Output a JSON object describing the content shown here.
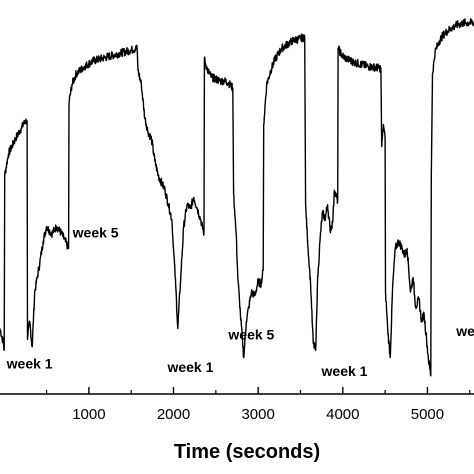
{
  "chart_data": {
    "type": "line",
    "title": "",
    "xlabel": "Time (seconds)",
    "ylabel": "",
    "xlim": [
      -50,
      5550
    ],
    "ylim": [
      0,
      100
    ],
    "xticks": [
      1000,
      2000,
      3000,
      4000,
      5000
    ],
    "grid": false,
    "legend": "none",
    "line_color": "#000000",
    "annotations": [
      {
        "text": "week 1",
        "x": 300,
        "y": 7
      },
      {
        "text": "week 5",
        "x": 1080,
        "y": 43
      },
      {
        "text": "week 1",
        "x": 2200,
        "y": 6
      },
      {
        "text": "week 5",
        "x": 2920,
        "y": 15
      },
      {
        "text": "week 1",
        "x": 4020,
        "y": 5
      },
      {
        "text": "we",
        "x": 5450,
        "y": 16
      }
    ],
    "series": [
      {
        "values": [
          [
            -50,
            18
          ],
          [
            -10,
            14
          ],
          [
            0,
            12
          ],
          [
            5,
            60
          ],
          [
            50,
            66
          ],
          [
            130,
            70
          ],
          [
            200,
            73
          ],
          [
            250,
            75
          ],
          [
            270,
            75
          ],
          [
            275,
            15
          ],
          [
            300,
            20
          ],
          [
            330,
            13
          ],
          [
            360,
            28
          ],
          [
            390,
            32
          ],
          [
            420,
            36
          ],
          [
            460,
            42
          ],
          [
            500,
            46
          ],
          [
            560,
            44
          ],
          [
            620,
            46
          ],
          [
            680,
            44
          ],
          [
            760,
            40
          ],
          [
            765,
            80
          ],
          [
            800,
            85
          ],
          [
            850,
            88
          ],
          [
            950,
            90
          ],
          [
            1050,
            91.5
          ],
          [
            1200,
            92.5
          ],
          [
            1350,
            93.5
          ],
          [
            1500,
            94.5
          ],
          [
            1570,
            95
          ],
          [
            1580,
            89
          ],
          [
            1620,
            85
          ],
          [
            1660,
            76
          ],
          [
            1700,
            72
          ],
          [
            1740,
            70
          ],
          [
            1780,
            64
          ],
          [
            1820,
            60
          ],
          [
            1860,
            58
          ],
          [
            1900,
            56
          ],
          [
            1940,
            52
          ],
          [
            1980,
            48
          ],
          [
            2000,
            40
          ],
          [
            2030,
            28
          ],
          [
            2050,
            18
          ],
          [
            2080,
            30
          ],
          [
            2120,
            46
          ],
          [
            2160,
            52
          ],
          [
            2200,
            51
          ],
          [
            2240,
            54
          ],
          [
            2280,
            51
          ],
          [
            2320,
            48
          ],
          [
            2360,
            44
          ],
          [
            2365,
            92
          ],
          [
            2400,
            89
          ],
          [
            2450,
            87
          ],
          [
            2500,
            86.5
          ],
          [
            2550,
            86
          ],
          [
            2600,
            86
          ],
          [
            2650,
            85.5
          ],
          [
            2700,
            84
          ],
          [
            2710,
            55
          ],
          [
            2740,
            44
          ],
          [
            2760,
            32
          ],
          [
            2790,
            22
          ],
          [
            2830,
            10
          ],
          [
            2860,
            20
          ],
          [
            2890,
            24
          ],
          [
            2920,
            28
          ],
          [
            2960,
            27
          ],
          [
            3000,
            31
          ],
          [
            3030,
            30
          ],
          [
            3060,
            34
          ],
          [
            3065,
            74
          ],
          [
            3100,
            85
          ],
          [
            3150,
            89
          ],
          [
            3200,
            92
          ],
          [
            3280,
            95
          ],
          [
            3400,
            97
          ],
          [
            3550,
            98
          ],
          [
            3560,
            52
          ],
          [
            3590,
            40
          ],
          [
            3620,
            30
          ],
          [
            3650,
            14
          ],
          [
            3680,
            12
          ],
          [
            3700,
            30
          ],
          [
            3730,
            42
          ],
          [
            3760,
            50
          ],
          [
            3790,
            48
          ],
          [
            3820,
            52
          ],
          [
            3850,
            45
          ],
          [
            3880,
            47
          ],
          [
            3900,
            56
          ],
          [
            3940,
            53
          ],
          [
            3945,
            95
          ],
          [
            3990,
            93
          ],
          [
            4050,
            92
          ],
          [
            4150,
            91
          ],
          [
            4300,
            90
          ],
          [
            4450,
            89.5
          ],
          [
            4460,
            68
          ],
          [
            4480,
            74
          ],
          [
            4500,
            70
          ],
          [
            4505,
            28
          ],
          [
            4530,
            18
          ],
          [
            4560,
            10
          ],
          [
            4590,
            30
          ],
          [
            4620,
            40
          ],
          [
            4660,
            42
          ],
          [
            4700,
            40
          ],
          [
            4730,
            38
          ],
          [
            4760,
            40
          ],
          [
            4800,
            28
          ],
          [
            4830,
            32
          ],
          [
            4860,
            24
          ],
          [
            4900,
            26
          ],
          [
            4930,
            20
          ],
          [
            4960,
            22
          ],
          [
            4990,
            15
          ],
          [
            5010,
            10
          ],
          [
            5040,
            5
          ],
          [
            5045,
            60
          ],
          [
            5060,
            88
          ],
          [
            5090,
            94
          ],
          [
            5140,
            97
          ],
          [
            5200,
            99
          ],
          [
            5280,
            100.5
          ],
          [
            5360,
            101.5
          ],
          [
            5450,
            102
          ],
          [
            5550,
            102
          ]
        ]
      }
    ]
  }
}
